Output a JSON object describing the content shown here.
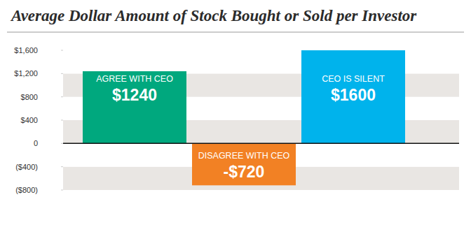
{
  "chart_data": {
    "type": "bar",
    "title": "Average Dollar Amount of Stock Bought or Sold per Investor",
    "categories": [
      "AGREE WITH CEO",
      "DISAGREE WITH CEO",
      "CEO IS SILENT"
    ],
    "values": [
      1240,
      -720,
      1600
    ],
    "value_labels": [
      "$1240",
      "-$720",
      "$1600"
    ],
    "colors": [
      "#00a87e",
      "#f28124",
      "#00b3ec"
    ],
    "ylim": [
      -800,
      1600
    ],
    "yticks": [
      {
        "value": -800,
        "label": "($800)"
      },
      {
        "value": -400,
        "label": "($400)"
      },
      0,
      {
        "value": 400,
        "label": "$400"
      },
      {
        "value": 800,
        "label": "$800"
      },
      {
        "value": 1200,
        "label": "$1,200"
      },
      {
        "value": 1600,
        "label": "$1,600"
      }
    ],
    "grid": true,
    "data_labels": true
  }
}
